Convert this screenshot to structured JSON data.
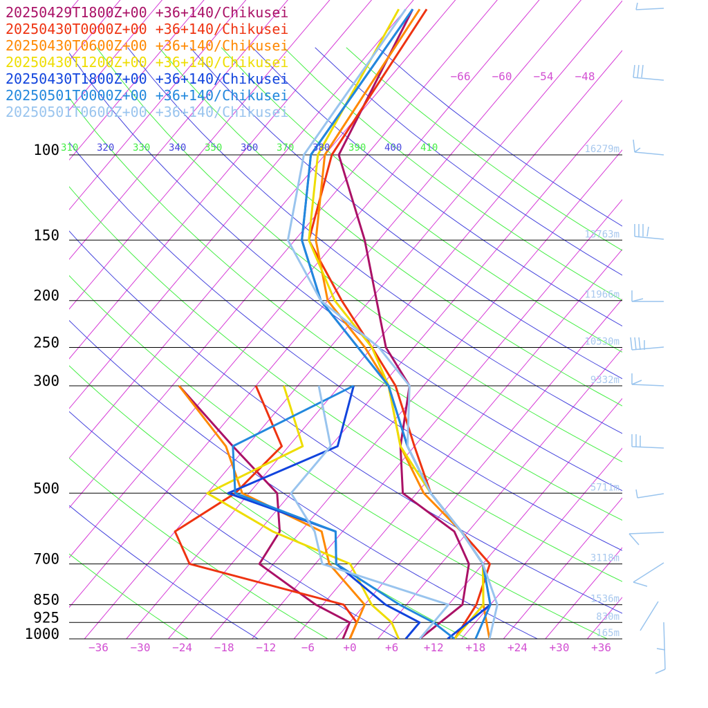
{
  "chart_data": {
    "type": "line",
    "title": "",
    "xlabel": "",
    "ylabel": "",
    "y_scale": "log",
    "pressure_levels": [
      100,
      150,
      200,
      250,
      300,
      500,
      700,
      850,
      925,
      1000
    ],
    "temperature_ticks": [
      "−36",
      "−30",
      "−24",
      "−18",
      "−12",
      "−6",
      "+0",
      "+6",
      "+12",
      "+18",
      "+24",
      "+30",
      "+36"
    ],
    "upper_temperature_ticks": [
      "−66",
      "−60",
      "−54",
      "−48"
    ],
    "theta_ticks": [
      {
        "label": "310",
        "color": "#44ee44"
      },
      {
        "label": "320",
        "color": "#4444dd"
      },
      {
        "label": "330",
        "color": "#44ee44"
      },
      {
        "label": "340",
        "color": "#4444dd"
      },
      {
        "label": "350",
        "color": "#44ee44"
      },
      {
        "label": "360",
        "color": "#4444dd"
      },
      {
        "label": "370",
        "color": "#44ee44"
      },
      {
        "label": "380",
        "color": "#4444dd"
      },
      {
        "label": "390",
        "color": "#44ee44"
      },
      {
        "label": "400",
        "color": "#4444dd"
      },
      {
        "label": "410",
        "color": "#44ee44"
      }
    ],
    "heights": [
      {
        "p": 100,
        "label": "16279m"
      },
      {
        "p": 150,
        "label": "13763m"
      },
      {
        "p": 200,
        "label": "11966m"
      },
      {
        "p": 250,
        "label": "10530m"
      },
      {
        "p": 300,
        "label": "9332m"
      },
      {
        "p": 500,
        "label": "5711m"
      },
      {
        "p": 700,
        "label": "3118m"
      },
      {
        "p": 850,
        "label": "1536m"
      },
      {
        "p": 925,
        "label": "830m"
      },
      {
        "p": 1000,
        "label": "165m"
      }
    ],
    "series": [
      {
        "name": "20250429T1800Z+00 +36+140/Chikusei",
        "color": "#aa1166",
        "temperature": [
          [
            1000,
            10
          ],
          [
            850,
            12
          ],
          [
            700,
            8
          ],
          [
            600,
            2
          ],
          [
            500,
            -10
          ],
          [
            400,
            -16
          ],
          [
            300,
            -22
          ],
          [
            250,
            -30
          ],
          [
            200,
            -37
          ],
          [
            150,
            -46
          ],
          [
            100,
            -60
          ],
          [
            50,
            -67
          ]
        ],
        "dewpoint": [
          [
            1000,
            -1
          ],
          [
            925,
            -2
          ],
          [
            850,
            -9
          ],
          [
            700,
            -22
          ],
          [
            600,
            -23
          ],
          [
            500,
            -28
          ],
          [
            400,
            -40
          ],
          [
            300,
            -55
          ]
        ]
      },
      {
        "name": "20250430T0000Z+00 +36+140/Chikusei",
        "color": "#ee3311",
        "temperature": [
          [
            1000,
            15
          ],
          [
            850,
            14
          ],
          [
            700,
            11
          ],
          [
            600,
            3
          ],
          [
            500,
            -6
          ],
          [
            400,
            -14
          ],
          [
            300,
            -24
          ],
          [
            250,
            -32
          ],
          [
            200,
            -42
          ],
          [
            150,
            -54
          ],
          [
            100,
            -61
          ],
          [
            50,
            -65
          ]
        ],
        "dewpoint": [
          [
            1000,
            0
          ],
          [
            925,
            -1
          ],
          [
            850,
            -5
          ],
          [
            700,
            -32
          ],
          [
            600,
            -38
          ],
          [
            500,
            -34
          ],
          [
            400,
            -33
          ],
          [
            300,
            -44
          ]
        ]
      },
      {
        "name": "20250430T0600Z+00 +36+140/Chikusei",
        "color": "#ff8800",
        "temperature": [
          [
            1000,
            20
          ],
          [
            850,
            15
          ],
          [
            700,
            10
          ],
          [
            600,
            3
          ],
          [
            500,
            -7
          ],
          [
            400,
            -16
          ],
          [
            300,
            -25
          ],
          [
            250,
            -33
          ],
          [
            200,
            -44
          ],
          [
            150,
            -53
          ],
          [
            100,
            -62
          ],
          [
            50,
            -66
          ]
        ],
        "dewpoint": [
          [
            1000,
            0
          ],
          [
            850,
            -2
          ],
          [
            700,
            -12
          ],
          [
            600,
            -17
          ],
          [
            500,
            -33
          ],
          [
            400,
            -41
          ],
          [
            300,
            -55
          ]
        ]
      },
      {
        "name": "20250430T1200Z+00 +36+140/Chikusei",
        "color": "#eedd00",
        "temperature": [
          [
            1000,
            15
          ],
          [
            850,
            15
          ],
          [
            700,
            10
          ],
          [
            600,
            3
          ],
          [
            500,
            -6
          ],
          [
            400,
            -16
          ],
          [
            300,
            -25
          ],
          [
            250,
            -32
          ],
          [
            200,
            -43
          ],
          [
            150,
            -54
          ],
          [
            100,
            -63
          ],
          [
            50,
            -69
          ]
        ],
        "dewpoint": [
          [
            1000,
            7
          ],
          [
            925,
            4
          ],
          [
            850,
            -1
          ],
          [
            700,
            -9
          ],
          [
            600,
            -24
          ],
          [
            500,
            -38
          ],
          [
            400,
            -30
          ],
          [
            300,
            -40
          ]
        ]
      },
      {
        "name": "20250430T1800Z+00 +36+140/Chikusei",
        "color": "#1144dd",
        "temperature": [
          [
            1000,
            14
          ],
          [
            850,
            16
          ],
          [
            700,
            10
          ],
          [
            600,
            3
          ],
          [
            500,
            -6
          ],
          [
            400,
            -15
          ],
          [
            300,
            -25
          ],
          [
            250,
            -34
          ],
          [
            200,
            -45
          ],
          [
            150,
            -55
          ],
          [
            100,
            -64
          ],
          [
            50,
            -67
          ]
        ],
        "dewpoint": [
          [
            1000,
            8
          ],
          [
            925,
            8
          ],
          [
            850,
            1
          ],
          [
            700,
            -11
          ],
          [
            600,
            -15
          ],
          [
            500,
            -35
          ],
          [
            400,
            -25
          ],
          [
            300,
            -30
          ]
        ]
      },
      {
        "name": "20250501T0000Z+00 +36+140/Chikusei",
        "color": "#2288dd",
        "temperature": [
          [
            1000,
            18
          ],
          [
            850,
            16
          ],
          [
            700,
            10
          ],
          [
            600,
            3
          ],
          [
            500,
            -6
          ],
          [
            400,
            -15
          ],
          [
            300,
            -25
          ],
          [
            250,
            -34
          ],
          [
            200,
            -45
          ],
          [
            150,
            -55
          ],
          [
            100,
            -64
          ],
          [
            50,
            -67
          ]
        ],
        "dewpoint": [
          [
            1000,
            15
          ],
          [
            925,
            10
          ],
          [
            850,
            3
          ],
          [
            700,
            -11
          ],
          [
            600,
            -15
          ],
          [
            500,
            -34
          ],
          [
            400,
            -40
          ],
          [
            300,
            -30
          ]
        ]
      },
      {
        "name": "20250501T0600Z+00 +36+140/Chikusei",
        "color": "#99c4ee",
        "temperature": [
          [
            1000,
            20
          ],
          [
            850,
            17
          ],
          [
            700,
            10
          ],
          [
            600,
            3
          ],
          [
            500,
            -6
          ],
          [
            400,
            -15
          ],
          [
            300,
            -22
          ],
          [
            250,
            -31
          ],
          [
            200,
            -45
          ],
          [
            150,
            -57
          ],
          [
            100,
            -65
          ],
          [
            50,
            -68
          ]
        ],
        "dewpoint": [
          [
            1000,
            10
          ],
          [
            925,
            10
          ],
          [
            850,
            10
          ],
          [
            700,
            -13
          ],
          [
            600,
            -18
          ],
          [
            500,
            -26
          ],
          [
            400,
            -26
          ],
          [
            300,
            -35
          ]
        ]
      }
    ]
  }
}
